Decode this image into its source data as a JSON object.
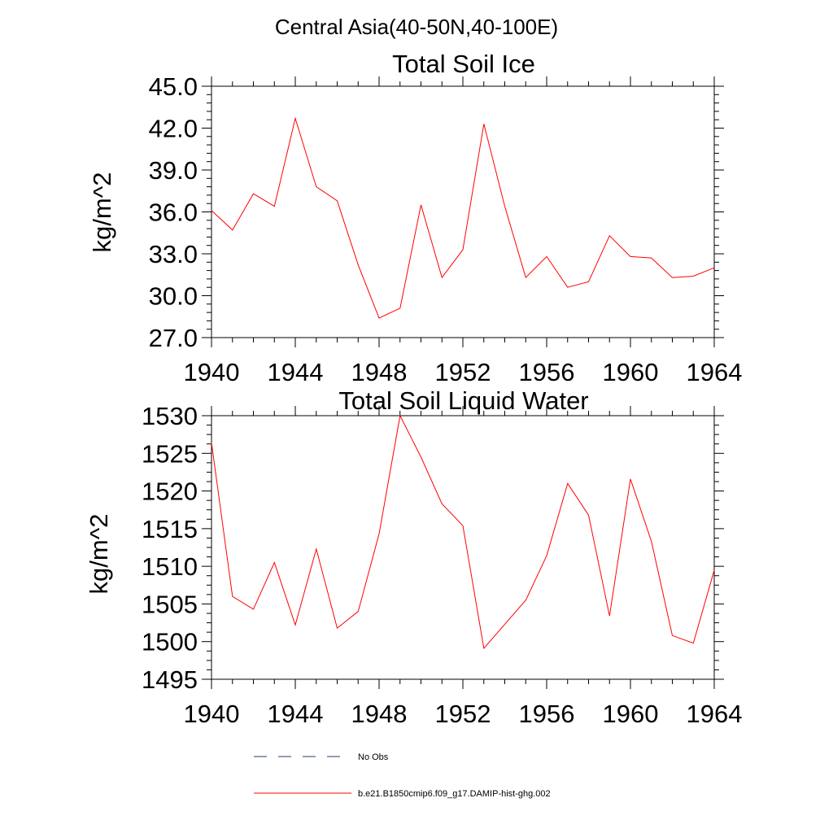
{
  "figure": {
    "suptitle": "Central Asia(40-50N,40-100E)"
  },
  "legend": {
    "entries": [
      {
        "label": "No Obs",
        "color": "#1f3f6f",
        "style": "dashed"
      },
      {
        "label": "b.e21.B1850cmip6.f09_g17.DAMIP-hist-ghg.002",
        "color": "#ff0000",
        "style": "solid"
      }
    ]
  },
  "chart_data": [
    {
      "type": "line",
      "title": "Total Soil Ice",
      "xlabel": "",
      "ylabel": "kg/m^2",
      "xlim": [
        1940,
        1964
      ],
      "ylim": [
        27.0,
        45.0
      ],
      "xticks": [
        1940,
        1944,
        1948,
        1952,
        1956,
        1960,
        1964
      ],
      "xtick_labels": [
        "1940",
        "1944",
        "1948",
        "1952",
        "1956",
        "1960",
        "1964"
      ],
      "yticks": [
        27.0,
        30.0,
        33.0,
        36.0,
        39.0,
        42.0,
        45.0
      ],
      "ytick_labels": [
        "27.0",
        "30.0",
        "33.0",
        "36.0",
        "39.0",
        "42.0",
        "45.0"
      ],
      "grid": false,
      "series": [
        {
          "name": "b.e21.B1850cmip6.f09_g17.DAMIP-hist-ghg.002",
          "color": "#ff0000",
          "x": [
            1940,
            1941,
            1942,
            1943,
            1944,
            1945,
            1946,
            1947,
            1948,
            1949,
            1950,
            1951,
            1952,
            1953,
            1954,
            1955,
            1956,
            1957,
            1958,
            1959,
            1960,
            1961,
            1962,
            1963,
            1964
          ],
          "values": [
            36.1,
            34.7,
            37.3,
            36.4,
            42.7,
            37.8,
            36.8,
            32.2,
            28.4,
            29.1,
            36.5,
            31.3,
            33.3,
            42.3,
            36.4,
            31.3,
            32.8,
            30.6,
            31.0,
            34.3,
            32.8,
            32.7,
            31.3,
            31.4,
            32.0
          ]
        }
      ]
    },
    {
      "type": "line",
      "title": "Total Soil Liquid Water",
      "xlabel": "",
      "ylabel": "kg/m^2",
      "xlim": [
        1940,
        1964
      ],
      "ylim": [
        1495,
        1530
      ],
      "xticks": [
        1940,
        1944,
        1948,
        1952,
        1956,
        1960,
        1964
      ],
      "xtick_labels": [
        "1940",
        "1944",
        "1948",
        "1952",
        "1956",
        "1960",
        "1964"
      ],
      "yticks": [
        1495,
        1500,
        1505,
        1510,
        1515,
        1520,
        1525,
        1530
      ],
      "ytick_labels": [
        "1495",
        "1500",
        "1505",
        "1510",
        "1515",
        "1520",
        "1525",
        "1530"
      ],
      "grid": false,
      "series": [
        {
          "name": "b.e21.B1850cmip6.f09_g17.DAMIP-hist-ghg.002",
          "color": "#ff0000",
          "x": [
            1940,
            1941,
            1942,
            1943,
            1944,
            1945,
            1946,
            1947,
            1948,
            1949,
            1950,
            1951,
            1952,
            1953,
            1954,
            1955,
            1956,
            1957,
            1958,
            1959,
            1960,
            1961,
            1962,
            1963,
            1964
          ],
          "values": [
            1526.4,
            1506.0,
            1504.3,
            1510.5,
            1502.2,
            1512.3,
            1501.8,
            1504.0,
            1514.3,
            1530.0,
            1524.5,
            1518.3,
            1515.4,
            1499.1,
            1502.3,
            1505.5,
            1511.4,
            1521.0,
            1516.8,
            1503.4,
            1521.6,
            1513.3,
            1500.8,
            1499.8,
            1509.5
          ]
        }
      ]
    }
  ]
}
